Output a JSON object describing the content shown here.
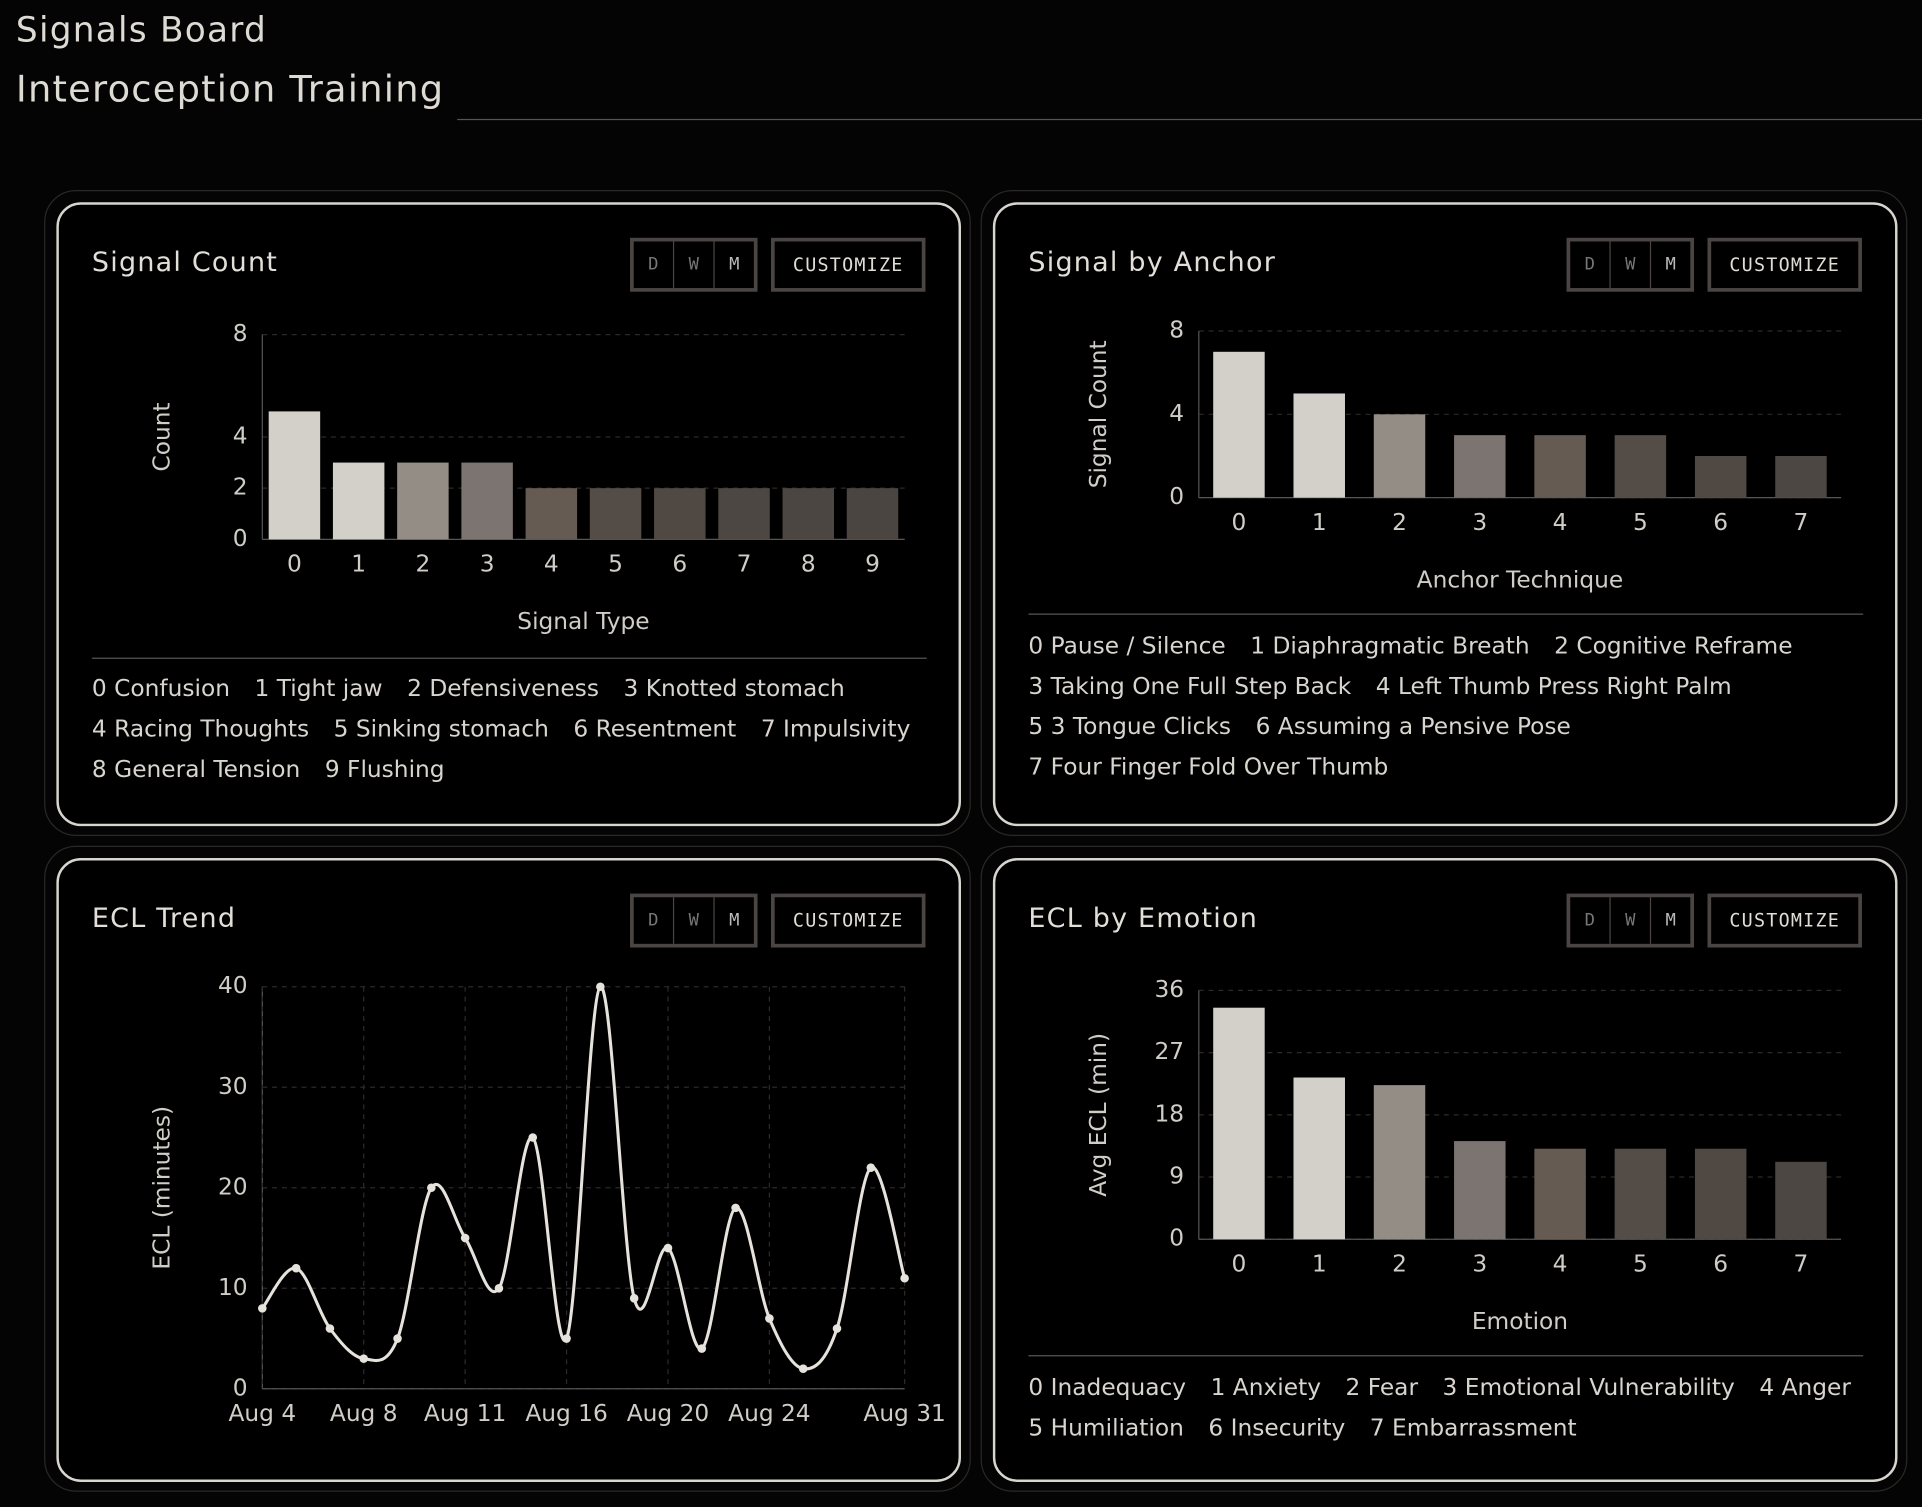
{
  "header": {
    "title": "Signals Board",
    "subtitle": "Interoception Training"
  },
  "controls": {
    "periods": [
      "D",
      "W",
      "M"
    ],
    "customize": "CUSTOMIZE"
  },
  "chart_data": [
    {
      "type": "bar",
      "title": "Signal Count",
      "x_label": "Signal Type",
      "y_label": "Count",
      "categories": [
        "0",
        "1",
        "2",
        "3",
        "4",
        "5",
        "6",
        "7",
        "8",
        "9"
      ],
      "values": [
        5,
        3,
        3,
        3,
        2,
        2,
        2,
        2,
        2,
        2
      ],
      "colors": [
        "#d3d0ca",
        "#d3d0ca",
        "#948d85",
        "#7c7470",
        "#655b52",
        "#544c47",
        "#4f4843",
        "#4d4743",
        "#4c4643",
        "#4b4542"
      ],
      "ylim": [
        0,
        8
      ],
      "yticks": [
        0,
        2,
        4,
        8
      ],
      "grid": true,
      "key": [
        "0 Confusion",
        "1 Tight jaw",
        "2 Defensiveness",
        "3 Knotted stomach",
        "4 Racing Thoughts",
        "5 Sinking stomach",
        "6 Resentment",
        "7 Impulsivity",
        "8 General Tension",
        "9 Flushing"
      ]
    },
    {
      "type": "bar",
      "title": "Signal by Anchor",
      "x_label": "Anchor Technique",
      "y_label": "Signal Count",
      "categories": [
        "0",
        "1",
        "2",
        "3",
        "4",
        "5",
        "6",
        "7"
      ],
      "values": [
        7,
        5,
        4,
        3,
        3,
        3,
        2,
        2
      ],
      "colors": [
        "#d3d0ca",
        "#d3d0ca",
        "#948d85",
        "#7c7470",
        "#655b52",
        "#544c47",
        "#4f4843",
        "#4d4743"
      ],
      "ylim": [
        0,
        8
      ],
      "yticks": [
        0,
        4,
        8
      ],
      "grid": true,
      "key": [
        "0 Pause / Silence",
        "1 Diaphragmatic Breath",
        "2 Cognitive Reframe",
        "3 Taking One Full Step Back",
        "4 Left Thumb Press Right Palm",
        "5 3 Tongue Clicks",
        "6 Assuming a Pensive Pose",
        "7 Four Finger Fold Over Thumb"
      ]
    },
    {
      "type": "line",
      "title": "ECL Trend",
      "y_label": "ECL (minutes)",
      "categories": [
        "Aug 4",
        null,
        null,
        "Aug 8",
        null,
        null,
        "Aug 11",
        null,
        null,
        "Aug 16",
        null,
        null,
        "Aug 20",
        null,
        null,
        "Aug 24",
        null,
        null,
        null,
        "Aug 31"
      ],
      "series": [
        {
          "name": "ECL",
          "color": "#e6e3dd",
          "values": [
            8,
            12,
            6,
            3,
            5,
            20,
            15,
            10,
            25,
            5,
            40,
            9,
            14,
            4,
            18,
            7,
            2,
            6,
            22,
            11
          ]
        }
      ],
      "ylim": [
        0,
        40
      ],
      "yticks": [
        0,
        10,
        20,
        30,
        40
      ],
      "grid": true
    },
    {
      "type": "bar",
      "title": "ECL by Emotion",
      "x_label": "Emotion",
      "y_label": "Avg ECL (min)",
      "categories": [
        "0",
        "1",
        "2",
        "3",
        "4",
        "5",
        "6",
        "7"
      ],
      "values": [
        33.5,
        23.4,
        22.3,
        14.2,
        13.1,
        13.1,
        13.1,
        11.2
      ],
      "colors": [
        "#d3d0ca",
        "#d3d0ca",
        "#948d85",
        "#7c7470",
        "#655b52",
        "#544c47",
        "#4f4843",
        "#4d4743"
      ],
      "ylim": [
        0,
        36
      ],
      "yticks": [
        0,
        9,
        18,
        27,
        36
      ],
      "grid": true,
      "key": [
        "0 Inadequacy",
        "1 Anxiety",
        "2 Fear",
        "3 Emotional Vulnerability",
        "4 Anger",
        "5 Humiliation",
        "6 Insecurity",
        "7 Embarrassment"
      ]
    }
  ]
}
